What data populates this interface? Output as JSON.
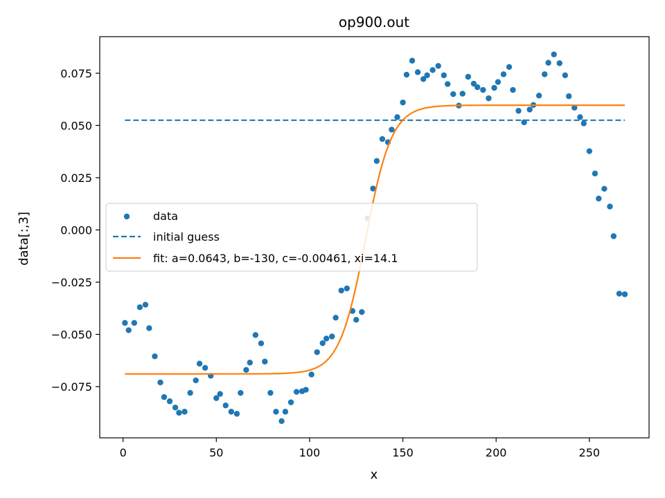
{
  "chart_data": {
    "type": "scatter",
    "title": "op900.out",
    "xlabel": "x",
    "ylabel": "data[:,3]",
    "xlim": [
      -12.5,
      282
    ],
    "ylim": [
      -0.0995,
      0.0925
    ],
    "xticks": [
      0,
      50,
      100,
      150,
      200,
      250
    ],
    "xtick_labels": [
      "0",
      "50",
      "100",
      "150",
      "200",
      "250"
    ],
    "yticks": [
      -0.075,
      -0.05,
      -0.025,
      0.0,
      0.025,
      0.05,
      0.075
    ],
    "ytick_labels": [
      "−0.075",
      "−0.050",
      "−0.025",
      "0.000",
      "0.025",
      "0.050",
      "0.075"
    ],
    "grid": false,
    "legend_position": "center-left",
    "series": [
      {
        "name": "data",
        "kind": "scatter",
        "color": "#1f77b4",
        "x": [
          1,
          3,
          6,
          9,
          12,
          14,
          17,
          20,
          22,
          25,
          28,
          30,
          33,
          36,
          39,
          41,
          44,
          47,
          50,
          52,
          55,
          58,
          61,
          63,
          66,
          68,
          71,
          74,
          76,
          79,
          82,
          85,
          87,
          90,
          93,
          96,
          98,
          101,
          104,
          107,
          109,
          112,
          114,
          117,
          120,
          123,
          125,
          128,
          131,
          134,
          136,
          139,
          142,
          144,
          147,
          150,
          152,
          155,
          158,
          161,
          163,
          166,
          169,
          172,
          174,
          177,
          180,
          182,
          185,
          188,
          190,
          193,
          196,
          199,
          201,
          204,
          207,
          209,
          212,
          215,
          218,
          220,
          223,
          226,
          228,
          231,
          234,
          237,
          239,
          242,
          245,
          247,
          250,
          253,
          255,
          258,
          261,
          263,
          266,
          269
        ],
        "y": [
          -0.0445,
          -0.048,
          -0.0445,
          -0.037,
          -0.0358,
          -0.047,
          -0.0605,
          -0.073,
          -0.08,
          -0.082,
          -0.085,
          -0.0875,
          -0.087,
          -0.078,
          -0.072,
          -0.064,
          -0.066,
          -0.0698,
          -0.0805,
          -0.0785,
          -0.084,
          -0.087,
          -0.088,
          -0.078,
          -0.067,
          -0.0635,
          -0.0503,
          -0.0543,
          -0.063,
          -0.078,
          -0.087,
          -0.0915,
          -0.087,
          -0.0825,
          -0.0775,
          -0.0772,
          -0.0765,
          -0.0692,
          -0.0585,
          -0.0542,
          -0.052,
          -0.051,
          -0.042,
          -0.029,
          -0.028,
          -0.0388,
          -0.043,
          -0.0393,
          0.0055,
          0.0198,
          0.033,
          0.0435,
          0.042,
          0.048,
          0.054,
          0.061,
          0.0743,
          0.081,
          0.0755,
          0.0722,
          0.074,
          0.0765,
          0.0785,
          0.074,
          0.0698,
          0.065,
          0.0595,
          0.0652,
          0.0733,
          0.07,
          0.0683,
          0.067,
          0.063,
          0.068,
          0.0708,
          0.0745,
          0.078,
          0.067,
          0.057,
          0.0515,
          0.0576,
          0.0598,
          0.0643,
          0.0745,
          0.08,
          0.084,
          0.0798,
          0.074,
          0.064,
          0.0585,
          0.054,
          0.051,
          0.0377,
          0.027,
          0.015,
          0.0197,
          0.0112,
          -0.003,
          -0.0305,
          -0.0308
        ]
      },
      {
        "name": "initial guess",
        "kind": "dashed-line",
        "color": "#1f77b4",
        "x": [
          1,
          269
        ],
        "y": [
          0.0525,
          0.0525
        ]
      },
      {
        "name": "fit: a=0.0643, b=-130, c=-0.00461, xi=14.1",
        "kind": "line",
        "color": "#ff7f0e",
        "model": "a*tanh((x+b)/xi)+c",
        "params": {
          "a": 0.0643,
          "b": -130,
          "c": -0.00461,
          "xi": 14.1
        },
        "x_range": [
          1,
          269
        ]
      }
    ]
  }
}
